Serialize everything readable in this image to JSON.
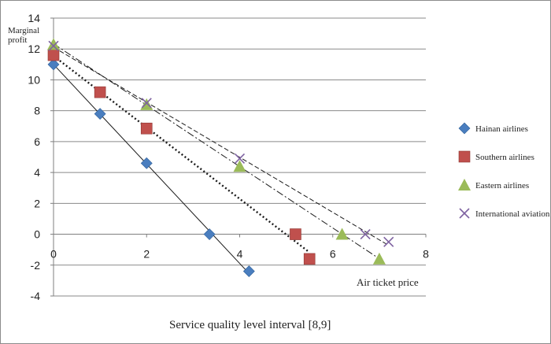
{
  "chart_data": {
    "type": "scatter",
    "title": "",
    "xlabel": "Air ticket price",
    "ylabel": "Marginal profit",
    "caption": "Service quality level interval [8,9]",
    "xlim": [
      0,
      8
    ],
    "ylim": [
      -4,
      14
    ],
    "x_ticks": [
      "0",
      "2",
      "4",
      "6",
      "8"
    ],
    "y_ticks": [
      "14",
      "12",
      "10",
      "8",
      "6",
      "4",
      "2",
      "0",
      "-2",
      "-4"
    ],
    "grid": "horizontal",
    "legend_position": "right",
    "series": [
      {
        "name": "Hainan airlines",
        "marker": "diamond",
        "color": "#4a7ebf",
        "trendline_style": "solid",
        "points": [
          [
            0,
            11
          ],
          [
            1,
            7.8
          ],
          [
            2,
            4.6
          ],
          [
            3.35,
            0
          ],
          [
            4.2,
            -2.4
          ]
        ]
      },
      {
        "name": "Southern airlines",
        "marker": "square",
        "color": "#c0504d",
        "trendline_style": "dotted",
        "points": [
          [
            0,
            11.6
          ],
          [
            1,
            9.2
          ],
          [
            2,
            6.85
          ],
          [
            5.2,
            0
          ],
          [
            5.5,
            -1.6
          ]
        ]
      },
      {
        "name": "Eastern airlines",
        "marker": "triangle",
        "color": "#9bbb59",
        "trendline_style": "dash-dot",
        "points": [
          [
            0,
            12.3
          ],
          [
            2,
            8.4
          ],
          [
            4,
            4.4
          ],
          [
            6.2,
            0
          ],
          [
            7,
            -1.6
          ]
        ]
      },
      {
        "name": "International aviation",
        "marker": "x",
        "color": "#7e62a1",
        "trendline_style": "dashed",
        "points": [
          [
            0,
            12.2
          ],
          [
            2,
            8.5
          ],
          [
            4,
            4.9
          ],
          [
            6.7,
            0
          ],
          [
            7.2,
            -0.5
          ]
        ]
      }
    ]
  }
}
